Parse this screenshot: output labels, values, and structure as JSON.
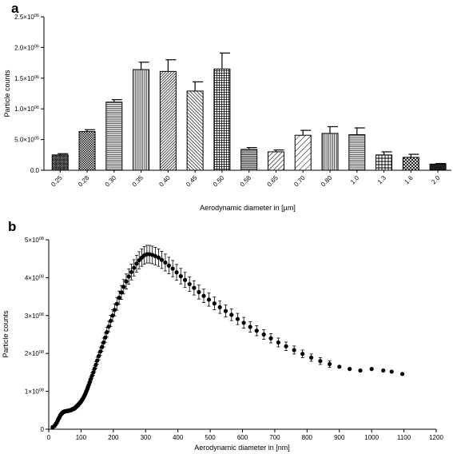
{
  "chart_data": [
    {
      "panel": "a",
      "type": "bar",
      "xlabel": "Aerodynamic diameter in [µm]",
      "ylabel": "Particle counts",
      "ylim": [
        0,
        2500000
      ],
      "yticks": [
        {
          "value": 0,
          "label": "0.0"
        },
        {
          "value": 500000,
          "label": "5.0×10^05"
        },
        {
          "value": 1000000,
          "label": "1.0×10^06"
        },
        {
          "value": 1500000,
          "label": "1.5×10^06"
        },
        {
          "value": 2000000,
          "label": "2.0×10^06"
        },
        {
          "value": 2500000,
          "label": "2.5×10^06"
        }
      ],
      "categories": [
        "0.25",
        "0.28",
        "0.30",
        "0.35",
        "0.40",
        "0.45",
        "0.50",
        "0.58",
        "0.65",
        "0.70",
        "0.80",
        "1.0",
        "1.3",
        "1.6",
        "2.0"
      ],
      "values": [
        250000,
        630000,
        1110000,
        1640000,
        1610000,
        1290000,
        1650000,
        340000,
        300000,
        570000,
        600000,
        580000,
        250000,
        210000,
        100000
      ],
      "errors": [
        20000,
        30000,
        40000,
        120000,
        190000,
        150000,
        260000,
        30000,
        30000,
        80000,
        110000,
        110000,
        50000,
        50000,
        10000
      ],
      "patterns": [
        "crosshatch-fine",
        "checker",
        "hlines",
        "vlines",
        "diag-dense-right",
        "diag-left",
        "grid",
        "hlines-dense",
        "diag-right",
        "diag-right-wide",
        "vlines",
        "hlines",
        "grid-wide",
        "crosshatch",
        "dots-dense"
      ]
    },
    {
      "panel": "b",
      "type": "scatter",
      "xlabel": "Aerodynamic diameter in  [nm]",
      "ylabel": "Particle counts",
      "xlim": [
        0,
        1200
      ],
      "ylim": [
        0,
        500000000
      ],
      "xticks": [
        "0",
        "100",
        "200",
        "300",
        "400",
        "500",
        "600",
        "700",
        "800",
        "900",
        "1000",
        "1100",
        "1200"
      ],
      "yticks": [
        {
          "value": 0,
          "label": "0"
        },
        {
          "value": 100000000,
          "label": "1×10^08"
        },
        {
          "value": 200000000,
          "label": "2×10^08"
        },
        {
          "value": 300000000,
          "label": "3×10^08"
        },
        {
          "value": 400000000,
          "label": "4×10^08"
        },
        {
          "value": 500000000,
          "label": "5×10^08"
        }
      ],
      "points": [
        [
          12,
          5000000
        ],
        [
          18,
          9000000
        ],
        [
          22,
          14000000
        ],
        [
          25,
          18000000
        ],
        [
          28,
          23000000
        ],
        [
          30,
          27000000
        ],
        [
          33,
          31000000
        ],
        [
          35,
          35000000
        ],
        [
          37,
          38000000
        ],
        [
          40,
          41000000
        ],
        [
          42,
          43000000
        ],
        [
          45,
          45000000
        ],
        [
          47,
          46000000
        ],
        [
          50,
          47000000
        ],
        [
          52,
          47500000
        ],
        [
          55,
          48000000
        ],
        [
          57,
          48000000
        ],
        [
          60,
          48500000
        ],
        [
          62,
          49000000
        ],
        [
          65,
          49500000
        ],
        [
          67,
          50000000
        ],
        [
          70,
          51000000
        ],
        [
          72,
          52000000
        ],
        [
          75,
          53000000
        ],
        [
          77,
          54000000
        ],
        [
          80,
          55000000
        ],
        [
          82,
          57000000
        ],
        [
          85,
          59000000
        ],
        [
          87,
          61000000
        ],
        [
          90,
          63000000
        ],
        [
          92,
          65000000
        ],
        [
          95,
          68000000
        ],
        [
          97,
          70000000
        ],
        [
          100,
          73000000
        ],
        [
          103,
          77000000
        ],
        [
          106,
          81000000
        ],
        [
          109,
          86000000
        ],
        [
          112,
          91000000
        ],
        [
          115,
          97000000
        ],
        [
          118,
          103000000
        ],
        [
          121,
          110000000
        ],
        [
          124,
          117000000
        ],
        [
          127,
          124000000
        ],
        [
          130,
          132000000
        ],
        [
          134,
          141000000
        ],
        [
          138,
          150000000
        ],
        [
          142,
          160000000
        ],
        [
          146,
          170000000
        ],
        [
          150,
          181000000
        ],
        [
          155,
          193000000
        ],
        [
          160,
          205000000
        ],
        [
          165,
          217000000
        ],
        [
          170,
          229000000
        ],
        [
          175,
          242000000
        ],
        [
          180,
          256000000
        ],
        [
          186,
          271000000
        ],
        [
          192,
          286000000
        ],
        [
          198,
          300000000
        ],
        [
          204,
          315000000
        ],
        [
          211,
          331000000
        ],
        [
          218,
          347000000
        ],
        [
          225,
          361000000
        ],
        [
          232,
          376000000
        ],
        [
          240,
          390000000
        ],
        [
          248,
          403000000
        ],
        [
          256,
          415000000
        ],
        [
          264,
          426000000
        ],
        [
          272,
          437000000
        ],
        [
          280,
          446000000
        ],
        [
          288,
          453000000
        ],
        [
          296,
          459000000
        ],
        [
          304,
          462000000
        ],
        [
          312,
          462000000
        ],
        [
          321,
          460000000
        ],
        [
          330,
          457000000
        ],
        [
          340,
          453000000
        ],
        [
          350,
          447000000
        ],
        [
          361,
          440000000
        ],
        [
          372,
          432000000
        ],
        [
          384,
          424000000
        ],
        [
          396,
          414000000
        ],
        [
          409,
          404000000
        ],
        [
          422,
          394000000
        ],
        [
          436,
          383000000
        ],
        [
          450,
          373000000
        ],
        [
          465,
          362000000
        ],
        [
          480,
          352000000
        ],
        [
          496,
          342000000
        ],
        [
          513,
          332000000
        ],
        [
          530,
          322000000
        ],
        [
          548,
          312000000
        ],
        [
          566,
          302000000
        ],
        [
          585,
          291000000
        ],
        [
          604,
          281000000
        ],
        [
          624,
          270000000
        ],
        [
          644,
          260000000
        ],
        [
          666,
          250000000
        ],
        [
          688,
          240000000
        ],
        [
          711,
          229000000
        ],
        [
          735,
          219000000
        ],
        [
          760,
          209000000
        ],
        [
          786,
          199000000
        ],
        [
          813,
          189000000
        ],
        [
          841,
          180000000
        ],
        [
          870,
          172000000
        ],
        [
          900,
          165000000
        ],
        [
          932,
          159000000
        ],
        [
          965,
          155000000
        ],
        [
          1000,
          159000000
        ],
        [
          1036,
          155000000
        ],
        [
          1062,
          152000000
        ],
        [
          1095,
          146000000
        ]
      ],
      "error_bars_until": 870
    }
  ]
}
